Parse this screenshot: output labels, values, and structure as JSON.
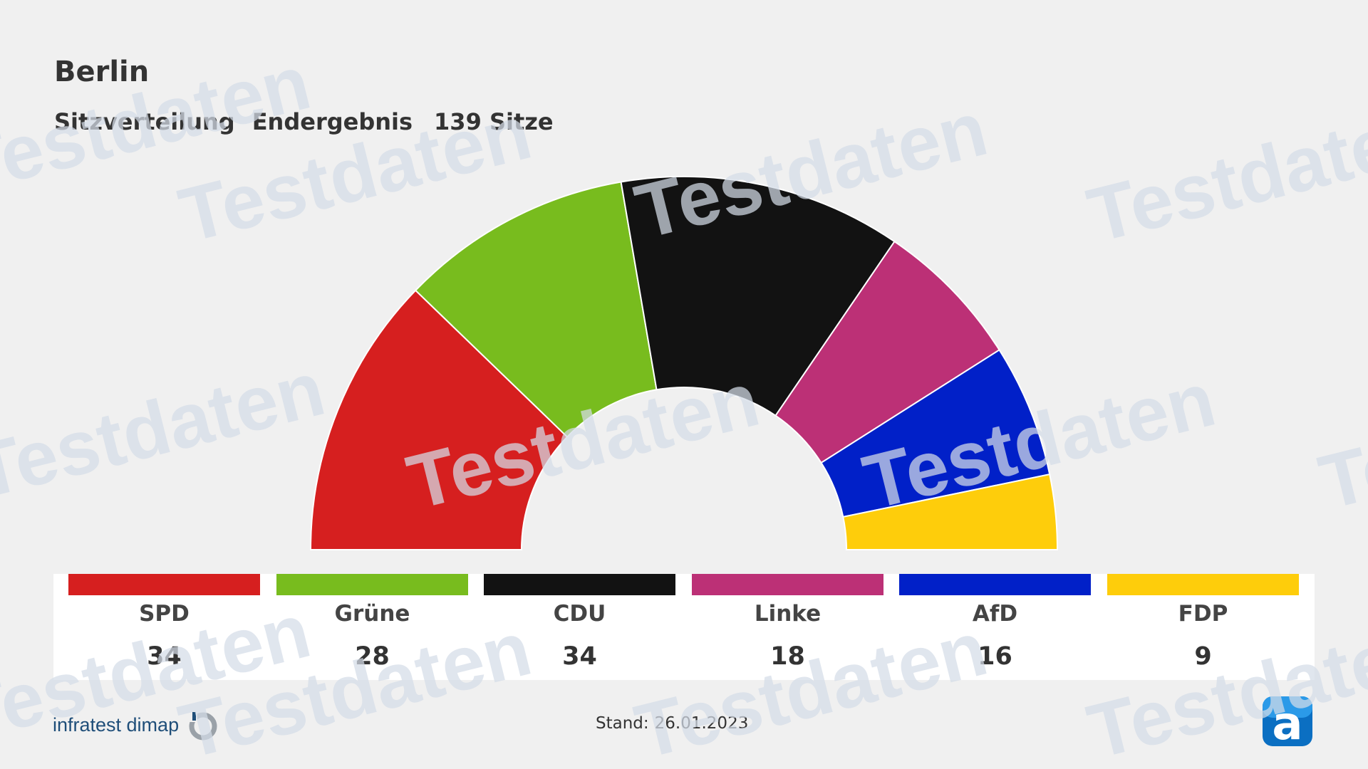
{
  "chart_data": {
    "type": "parliament-semicircle",
    "title": "Berlin",
    "subtitle": [
      "Sitzverteilung",
      "Endergebnis",
      "139 Sitze"
    ],
    "total_seats": 139,
    "parties": [
      {
        "name": "SPD",
        "seats": 34,
        "color": "#d61f1f"
      },
      {
        "name": "Grüne",
        "seats": 28,
        "color": "#78bc1e"
      },
      {
        "name": "CDU",
        "seats": 34,
        "color": "#121212"
      },
      {
        "name": "Linke",
        "seats": 18,
        "color": "#bc3076"
      },
      {
        "name": "AfD",
        "seats": 16,
        "color": "#0120c8"
      },
      {
        "name": "FDP",
        "seats": 9,
        "color": "#fecd0b"
      }
    ]
  },
  "footer": {
    "logo_text": "infratest dimap",
    "stand_label": "Stand:",
    "stand_value": "26.01.2023"
  },
  "watermark": "Testdaten"
}
